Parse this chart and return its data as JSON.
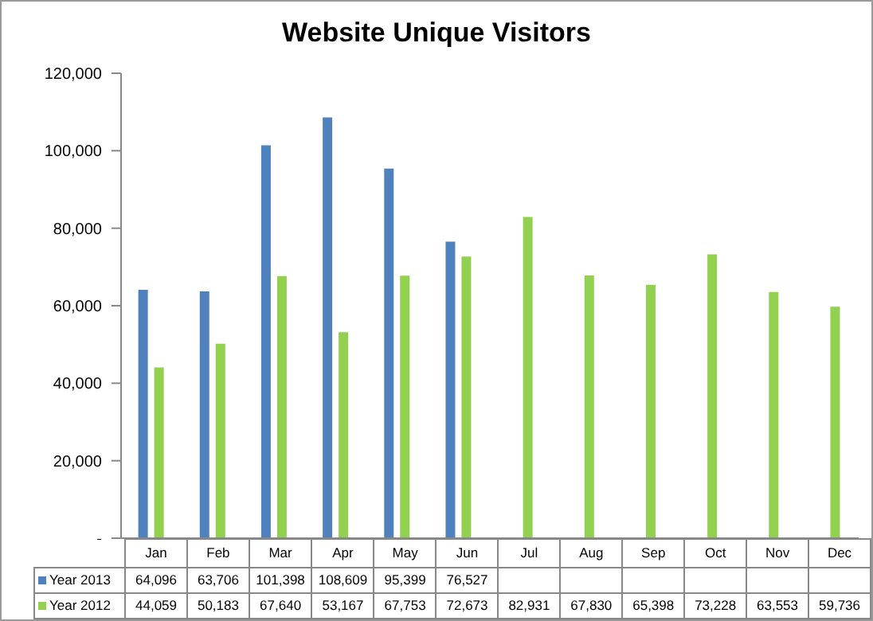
{
  "chart_data": {
    "type": "bar",
    "title": "Website Unique Visitors",
    "categories": [
      "Jan",
      "Feb",
      "Mar",
      "Apr",
      "May",
      "Jun",
      "Jul",
      "Aug",
      "Sep",
      "Oct",
      "Nov",
      "Dec"
    ],
    "series": [
      {
        "name": "Year 2013",
        "color": "#4f81bd",
        "values": [
          64096,
          63706,
          101398,
          108609,
          95399,
          76527,
          null,
          null,
          null,
          null,
          null,
          null
        ],
        "value_labels": [
          "64,096",
          "63,706",
          "101,398",
          "108,609",
          "95,399",
          "76,527",
          null,
          null,
          null,
          null,
          null,
          null
        ]
      },
      {
        "name": "Year 2012",
        "color": "#92d050",
        "values": [
          44059,
          50183,
          67640,
          53167,
          67753,
          72673,
          82931,
          67830,
          65398,
          73228,
          63553,
          59736
        ],
        "value_labels": [
          "44,059",
          "50,183",
          "67,640",
          "53,167",
          "67,753",
          "72,673",
          "82,931",
          "67,830",
          "65,398",
          "73,228",
          "63,553",
          "59,736"
        ]
      }
    ],
    "ylim": [
      0,
      120000
    ],
    "yticks": [
      {
        "value": 0,
        "label": "-"
      },
      {
        "value": 20000,
        "label": "20,000"
      },
      {
        "value": 40000,
        "label": "40,000"
      },
      {
        "value": 60000,
        "label": "60,000"
      },
      {
        "value": 80000,
        "label": "80,000"
      },
      {
        "value": 100000,
        "label": "100,000"
      },
      {
        "value": 120000,
        "label": "120,000"
      }
    ],
    "legend": "bottom"
  }
}
